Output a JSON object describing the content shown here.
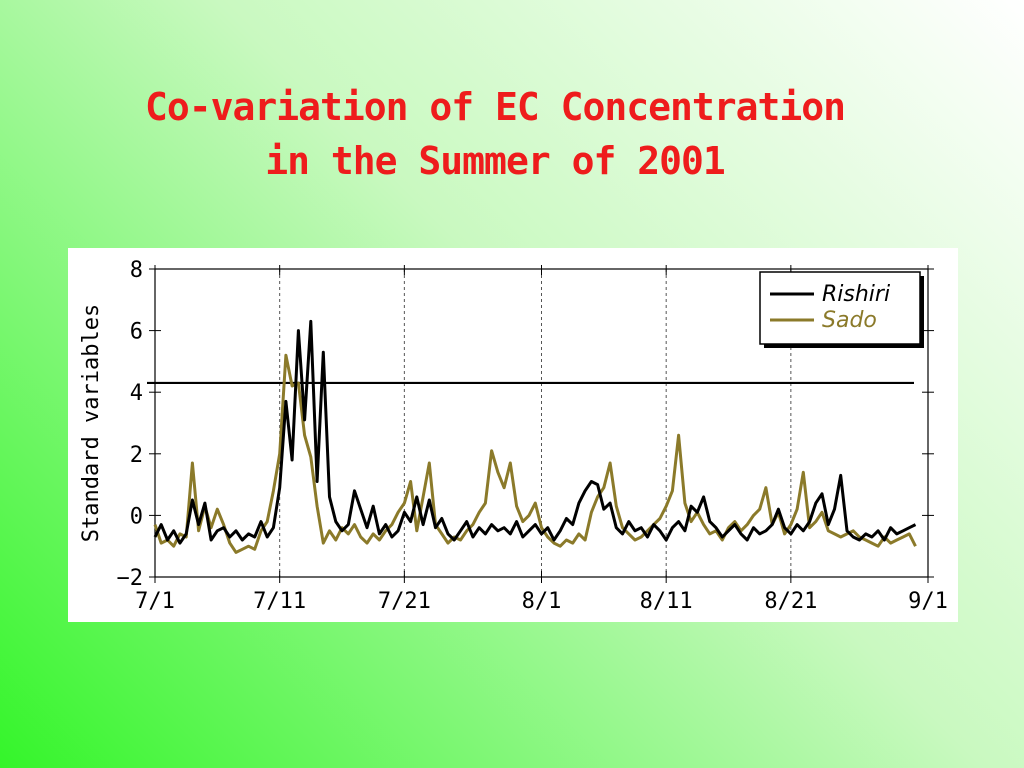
{
  "slide": {
    "title_line1": "Co-variation of EC Concentration",
    "title_line2": "in the Summer of 2001"
  },
  "chart_data": {
    "type": "line",
    "title": "Co-variation of EC Concentration in the Summer of 2001",
    "ylabel": "Standard variables",
    "xlabel": "",
    "ylim": [
      -2,
      8
    ],
    "yticks": [
      -2,
      0,
      2,
      4,
      6,
      8
    ],
    "xlim_days": [
      0,
      62
    ],
    "xtick_days": [
      0,
      10,
      20,
      31,
      41,
      51,
      62
    ],
    "xtick_labels": [
      "7/1",
      "7/11",
      "7/21",
      "8/1",
      "8/11",
      "8/21",
      "9/1"
    ],
    "threshold": 4.3,
    "grid": "vertical-dashed",
    "legend_position": "top-right",
    "colors": {
      "Rishiri": "#000000",
      "Sado": "#8b7a2a",
      "threshold": "#000000"
    },
    "series": [
      {
        "name": "Rishiri",
        "x": [
          0,
          0.5,
          1,
          1.5,
          2,
          2.5,
          3,
          3.5,
          4,
          4.5,
          5,
          5.5,
          6,
          6.5,
          7,
          7.5,
          8,
          8.5,
          9,
          9.5,
          10,
          10.5,
          11,
          11.5,
          12,
          12.5,
          13,
          13.5,
          14,
          14.5,
          15,
          15.5,
          16,
          16.5,
          17,
          17.5,
          18,
          18.5,
          19,
          19.5,
          20,
          20.5,
          21,
          21.5,
          22,
          22.5,
          23,
          23.5,
          24,
          24.5,
          25,
          25.5,
          26,
          26.5,
          27,
          27.5,
          28,
          28.5,
          29,
          29.5,
          30,
          30.5,
          31,
          31.5,
          32,
          32.5,
          33,
          33.5,
          34,
          34.5,
          35,
          35.5,
          36,
          36.5,
          37,
          37.5,
          38,
          38.5,
          39,
          39.5,
          40,
          40.5,
          41,
          41.5,
          42,
          42.5,
          43,
          43.5,
          44,
          44.5,
          45,
          45.5,
          46,
          46.5,
          47,
          47.5,
          48,
          48.5,
          49,
          49.5,
          50,
          50.5,
          51,
          51.5,
          52,
          52.5,
          53,
          53.5,
          54,
          54.5,
          55,
          55.5,
          56,
          56.5,
          57,
          57.5,
          58,
          58.5,
          59,
          59.5,
          60,
          60.5,
          61
        ],
        "y": [
          -0.7,
          -0.3,
          -0.8,
          -0.5,
          -0.9,
          -0.6,
          0.5,
          -0.3,
          0.4,
          -0.8,
          -0.5,
          -0.4,
          -0.7,
          -0.5,
          -0.8,
          -0.6,
          -0.7,
          -0.2,
          -0.7,
          -0.4,
          0.9,
          3.7,
          1.8,
          6.0,
          3.1,
          6.3,
          1.1,
          5.3,
          0.6,
          -0.2,
          -0.5,
          -0.3,
          0.8,
          0.2,
          -0.4,
          0.3,
          -0.6,
          -0.3,
          -0.7,
          -0.5,
          0.1,
          -0.2,
          0.6,
          -0.3,
          0.5,
          -0.4,
          -0.1,
          -0.6,
          -0.8,
          -0.5,
          -0.2,
          -0.7,
          -0.4,
          -0.6,
          -0.3,
          -0.5,
          -0.4,
          -0.6,
          -0.2,
          -0.7,
          -0.5,
          -0.3,
          -0.6,
          -0.4,
          -0.8,
          -0.5,
          -0.1,
          -0.3,
          0.4,
          0.8,
          1.1,
          1.0,
          0.2,
          0.4,
          -0.4,
          -0.6,
          -0.2,
          -0.5,
          -0.4,
          -0.7,
          -0.3,
          -0.5,
          -0.8,
          -0.4,
          -0.2,
          -0.5,
          0.3,
          0.1,
          0.6,
          -0.2,
          -0.4,
          -0.7,
          -0.5,
          -0.3,
          -0.6,
          -0.8,
          -0.4,
          -0.6,
          -0.5,
          -0.3,
          0.2,
          -0.4,
          -0.6,
          -0.3,
          -0.5,
          -0.2,
          0.4,
          0.7,
          -0.3,
          0.2,
          1.3,
          -0.5,
          -0.7,
          -0.8,
          -0.6,
          -0.7,
          -0.5,
          -0.8,
          -0.4,
          -0.6,
          -0.5,
          -0.4,
          -0.3
        ]
      },
      {
        "name": "Sado",
        "x": [
          0,
          0.5,
          1,
          1.5,
          2,
          2.5,
          3,
          3.5,
          4,
          4.5,
          5,
          5.5,
          6,
          6.5,
          7,
          7.5,
          8,
          8.5,
          9,
          9.5,
          10,
          10.5,
          11,
          11.5,
          12,
          12.5,
          13,
          13.5,
          14,
          14.5,
          15,
          15.5,
          16,
          16.5,
          17,
          17.5,
          18,
          18.5,
          19,
          19.5,
          20,
          20.5,
          21,
          21.5,
          22,
          22.5,
          23,
          23.5,
          24,
          24.5,
          25,
          25.5,
          26,
          26.5,
          27,
          27.5,
          28,
          28.5,
          29,
          29.5,
          30,
          30.5,
          31,
          31.5,
          32,
          32.5,
          33,
          33.5,
          34,
          34.5,
          35,
          35.5,
          36,
          36.5,
          37,
          37.5,
          38,
          38.5,
          39,
          39.5,
          40,
          40.5,
          41,
          41.5,
          42,
          42.5,
          43,
          43.5,
          44,
          44.5,
          45,
          45.5,
          46,
          46.5,
          47,
          47.5,
          48,
          48.5,
          49,
          49.5,
          50,
          50.5,
          51,
          51.5,
          52,
          52.5,
          53,
          53.5,
          54,
          54.5,
          55,
          55.5,
          56,
          56.5,
          57,
          57.5,
          58,
          58.5,
          59,
          59.5,
          60,
          60.5,
          61
        ],
        "y": [
          -0.3,
          -0.9,
          -0.8,
          -1.0,
          -0.6,
          -0.7,
          1.7,
          -0.5,
          0.3,
          -0.4,
          0.2,
          -0.3,
          -0.9,
          -1.2,
          -1.1,
          -1.0,
          -1.1,
          -0.5,
          -0.2,
          0.8,
          2.0,
          5.2,
          4.2,
          4.3,
          2.6,
          1.9,
          0.3,
          -0.9,
          -0.5,
          -0.8,
          -0.4,
          -0.6,
          -0.3,
          -0.7,
          -0.9,
          -0.6,
          -0.8,
          -0.5,
          -0.3,
          0.1,
          0.4,
          1.1,
          -0.5,
          0.6,
          1.7,
          -0.3,
          -0.6,
          -0.9,
          -0.7,
          -0.8,
          -0.5,
          -0.3,
          0.1,
          0.4,
          2.1,
          1.4,
          0.9,
          1.7,
          0.3,
          -0.2,
          0.0,
          0.4,
          -0.4,
          -0.7,
          -0.9,
          -1.0,
          -0.8,
          -0.9,
          -0.6,
          -0.8,
          0.1,
          0.6,
          0.9,
          1.7,
          0.3,
          -0.4,
          -0.6,
          -0.8,
          -0.7,
          -0.5,
          -0.3,
          -0.1,
          0.3,
          0.8,
          2.6,
          0.4,
          -0.2,
          0.1,
          -0.3,
          -0.6,
          -0.5,
          -0.8,
          -0.4,
          -0.2,
          -0.5,
          -0.3,
          0.0,
          0.2,
          0.9,
          -0.3,
          0.1,
          -0.6,
          -0.3,
          0.2,
          1.4,
          -0.4,
          -0.2,
          0.1,
          -0.5,
          -0.6,
          -0.7,
          -0.6,
          -0.5,
          -0.7,
          -0.8,
          -0.9,
          -1.0,
          -0.7,
          -0.9,
          -0.8,
          -0.7,
          -0.6,
          -1.0
        ]
      }
    ]
  }
}
